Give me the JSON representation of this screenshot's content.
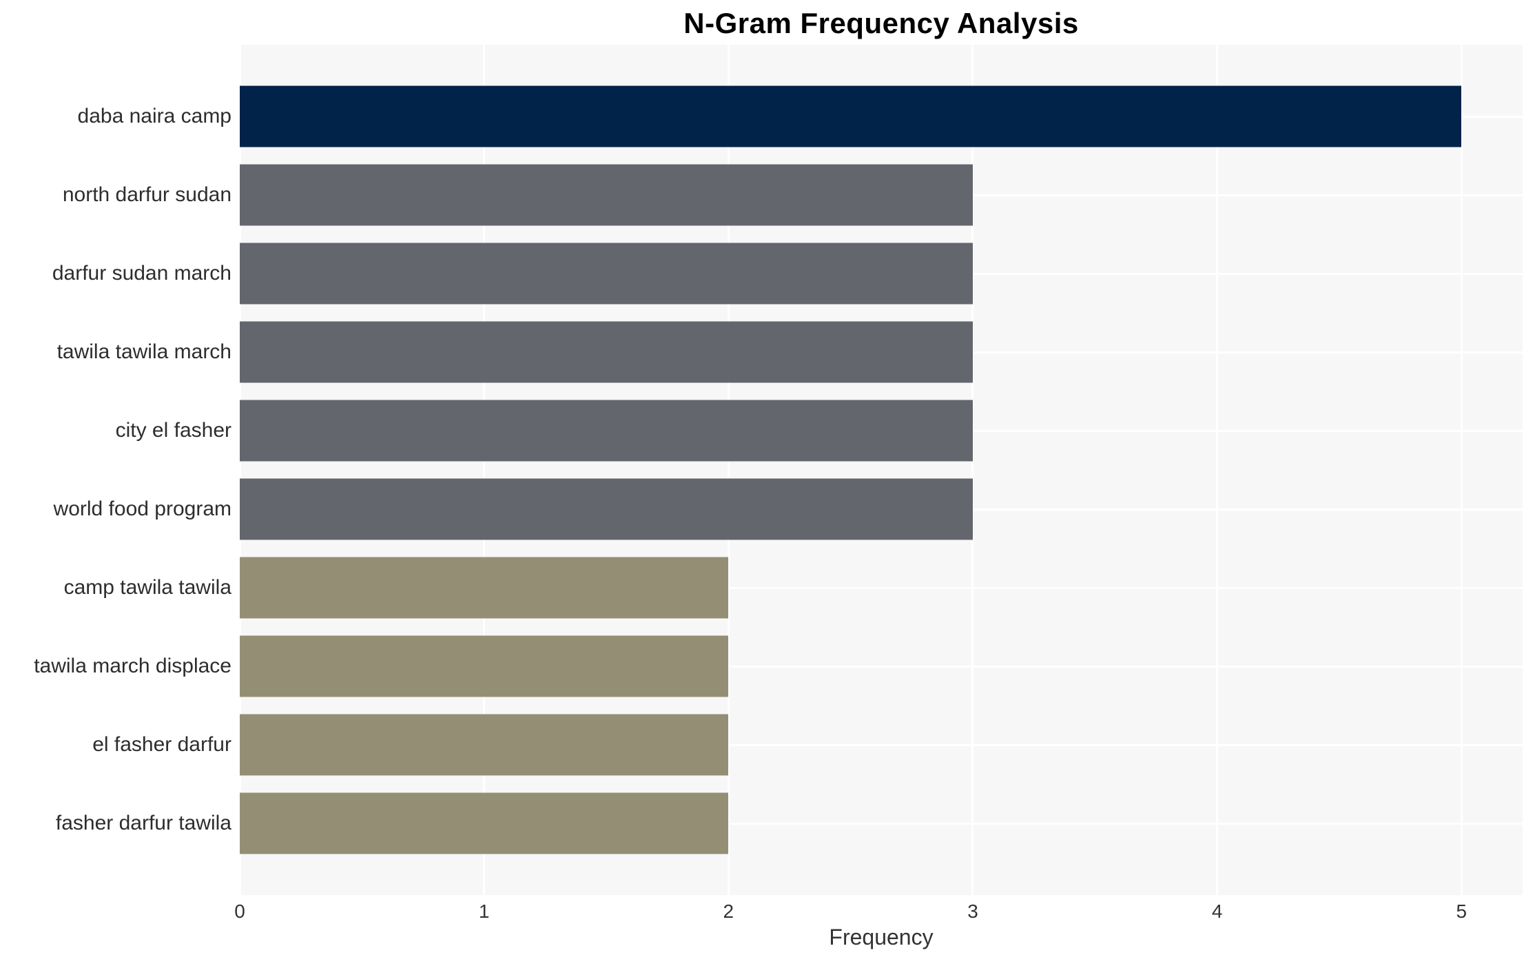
{
  "chart": {
    "title": "N-Gram Frequency Analysis",
    "xlabel": "Frequency"
  },
  "chart_data": {
    "type": "bar",
    "orientation": "horizontal",
    "title": "N-Gram Frequency Analysis",
    "xlabel": "Frequency",
    "ylabel": "",
    "categories": [
      "daba naira camp",
      "north darfur sudan",
      "darfur sudan march",
      "tawila tawila march",
      "city el fasher",
      "world food program",
      "camp tawila tawila",
      "tawila march displace",
      "el fasher darfur",
      "fasher darfur tawila"
    ],
    "values": [
      5,
      3,
      3,
      3,
      3,
      3,
      2,
      2,
      2,
      2
    ],
    "bar_colors": [
      "#022349",
      "#64666d",
      "#64666d",
      "#64666d",
      "#64666d",
      "#64666d",
      "#948f74",
      "#948f74",
      "#948f74",
      "#948f74"
    ],
    "xticks": [
      0,
      1,
      2,
      3,
      4,
      5
    ],
    "xlim": [
      0,
      5.25
    ],
    "grid": true,
    "legend": "none",
    "plot_background": "#f7f7f8",
    "grid_color": "#ffffff",
    "label_color": "#2d2d2d",
    "tick_color": "#333333"
  }
}
